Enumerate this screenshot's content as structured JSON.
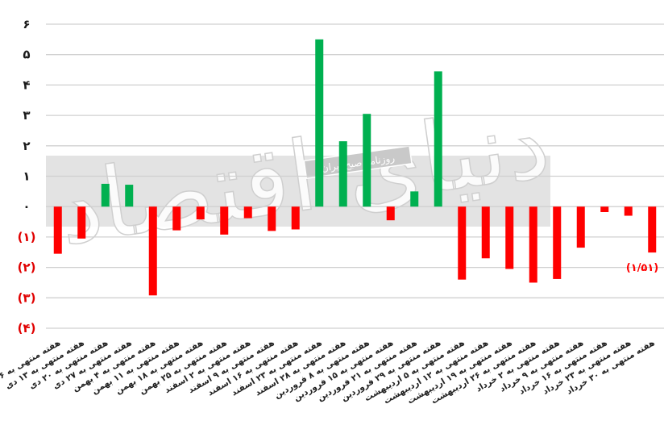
{
  "chart_data": {
    "type": "bar",
    "ylim": [
      -4,
      6
    ],
    "yticks": [
      {
        "value": 6,
        "label": "۶"
      },
      {
        "value": 5,
        "label": "۵"
      },
      {
        "value": 4,
        "label": "۴"
      },
      {
        "value": 3,
        "label": "۳"
      },
      {
        "value": 2,
        "label": "۲"
      },
      {
        "value": 1,
        "label": "۱"
      },
      {
        "value": 0,
        "label": "۰"
      },
      {
        "value": -1,
        "label": "(۱)"
      },
      {
        "value": -2,
        "label": "(۲)"
      },
      {
        "value": -3,
        "label": "(۳)"
      },
      {
        "value": -4,
        "label": "(۴)"
      }
    ],
    "categories": [
      "هفته منتهی به ۶ دی",
      "هفته منتهی به ۱۳ دی",
      "هفته منتهی به ۲۰ دی",
      "هفته منتهی به ۲۷ دی",
      "هفته منتهی به ۴ بهمن",
      "هفته منتهی به ۱۱ بهمن",
      "هفته منتهی به ۱۸ بهمن",
      "هفته منتهی به ۲۵ بهمن",
      "هفته منتهی به ۲ اسفند",
      "هفته منتهی به ۹ اسفند",
      "هفته منتهی به ۱۶ اسفند",
      "هفته منتهی به ۲۳ اسفند",
      "هفته منتهی به ۲۸ اسفند",
      "هفته منتهی به ۸ فروردین",
      "هفته منتهی به ۱۵ فروردین",
      "هفته منتهی به ۲۱ فروردین",
      "هفته منتهی به ۲۹ فروردین",
      "هفته منتهی به ۵ اردیبهشت",
      "هفته منتهی به ۱۲ اردیبهشت",
      "هفته منتهی به ۱۹ اردیبهشت",
      "هفته منتهی به ۲۶ اردیبهشت",
      "هفته منتهی به ۲ خرداد",
      "هفته منتهی به ۹ خرداد",
      "هفته منتهی به ۱۶ خرداد",
      "هفته منتهی به ۲۳ خرداد",
      "هفته منتهی به ۳۰ خرداد"
    ],
    "values": [
      -1.55,
      -1.05,
      0.75,
      0.72,
      -2.92,
      -0.78,
      -0.42,
      -0.92,
      -0.38,
      -0.8,
      -0.75,
      5.5,
      2.15,
      3.05,
      -0.45,
      0.5,
      4.45,
      -2.4,
      -1.7,
      -2.05,
      -2.5,
      -2.38,
      -1.35,
      -0.18,
      -0.3,
      -1.51
    ],
    "data_labels": [
      {
        "index": 25,
        "text": "(۱/۵۱)"
      }
    ],
    "colors": {
      "positive": "#00b050",
      "negative": "#ff0000",
      "axis_labels_positive": "#1a1a1a",
      "axis_labels_negative": "#e00000",
      "gridline": "#d0d0d0",
      "band": "#d9d9d9"
    },
    "grid": true,
    "legend": "none"
  },
  "watermark": {
    "script": "دنیای اقتصاد",
    "band_text": "روزنامه صبح ایران"
  }
}
